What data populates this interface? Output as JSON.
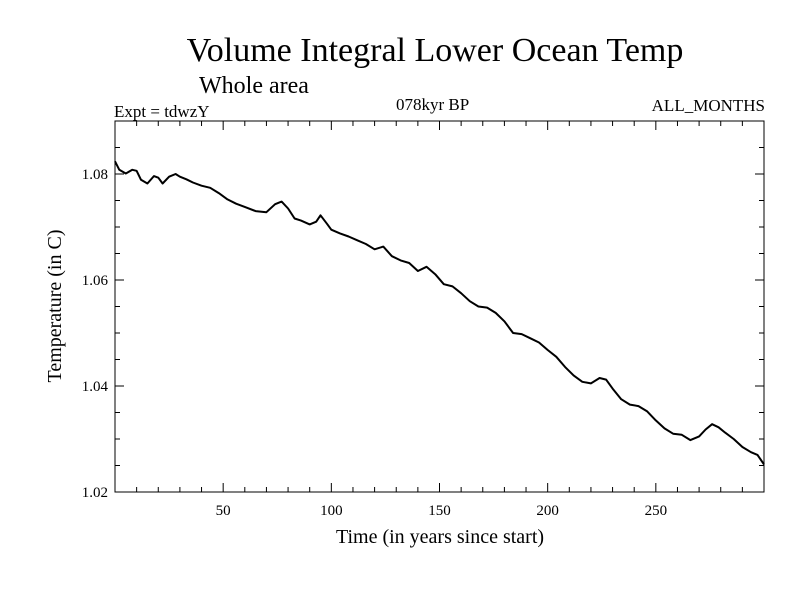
{
  "header": {
    "title": "Volume Integral Lower Ocean Temp",
    "subtitle": "Whole area",
    "experiment": "Expt = tdwzY",
    "period": "078kyr BP",
    "months": "ALL_MONTHS"
  },
  "chart_data": {
    "type": "line",
    "title": "Volume Integral Lower Ocean Temp",
    "subtitle": "Whole area",
    "xlabel": "Time (in years since start)",
    "ylabel": "Temperature (in C)",
    "xlim": [
      0,
      300
    ],
    "ylim": [
      1.02,
      1.09
    ],
    "xticks": [
      50,
      100,
      150,
      200,
      250
    ],
    "yticks": [
      1.02,
      1.04,
      1.06,
      1.08
    ],
    "xtick_labels": [
      "50",
      "100",
      "150",
      "200",
      "250"
    ],
    "ytick_labels": [
      "1.02",
      "1.04",
      "1.06",
      "1.08"
    ],
    "grid": false,
    "legend": "none",
    "series": [
      {
        "color": "#000000",
        "x": [
          0,
          2,
          5,
          8,
          10,
          12,
          15,
          18,
          20,
          22,
          25,
          28,
          30,
          33,
          36,
          40,
          44,
          48,
          52,
          56,
          60,
          65,
          70,
          74,
          77,
          80,
          83,
          86,
          90,
          93,
          95,
          98,
          100,
          104,
          108,
          112,
          116,
          120,
          124,
          128,
          132,
          136,
          140,
          144,
          148,
          152,
          156,
          160,
          164,
          168,
          172,
          176,
          180,
          184,
          188,
          192,
          196,
          200,
          204,
          208,
          212,
          216,
          220,
          224,
          227,
          230,
          234,
          238,
          242,
          246,
          250,
          254,
          258,
          262,
          266,
          270,
          273,
          276,
          279,
          282,
          286,
          290,
          294,
          297,
          300
        ],
        "y": [
          1.0824,
          1.0808,
          1.0801,
          1.0808,
          1.0806,
          1.0789,
          1.0782,
          1.0796,
          1.0793,
          1.0782,
          1.0795,
          1.08,
          1.0795,
          1.079,
          1.0784,
          1.0778,
          1.0774,
          1.0764,
          1.0752,
          1.0744,
          1.0738,
          1.073,
          1.0728,
          1.0743,
          1.0748,
          1.0735,
          1.0716,
          1.0712,
          1.0705,
          1.071,
          1.0722,
          1.0706,
          1.0695,
          1.0688,
          1.0682,
          1.0675,
          1.0668,
          1.0658,
          1.0663,
          1.0645,
          1.0637,
          1.0632,
          1.0617,
          1.0625,
          1.0611,
          1.0592,
          1.0588,
          1.0575,
          1.056,
          1.055,
          1.0548,
          1.0538,
          1.0522,
          1.05,
          1.0498,
          1.049,
          1.0482,
          1.0468,
          1.0455,
          1.0436,
          1.042,
          1.0408,
          1.0405,
          1.0415,
          1.0412,
          1.0395,
          1.0375,
          1.0365,
          1.0362,
          1.0352,
          1.0335,
          1.032,
          1.031,
          1.0308,
          1.0298,
          1.0305,
          1.0318,
          1.0328,
          1.0322,
          1.0312,
          1.03,
          1.0285,
          1.0275,
          1.027,
          1.0252
        ]
      }
    ]
  }
}
